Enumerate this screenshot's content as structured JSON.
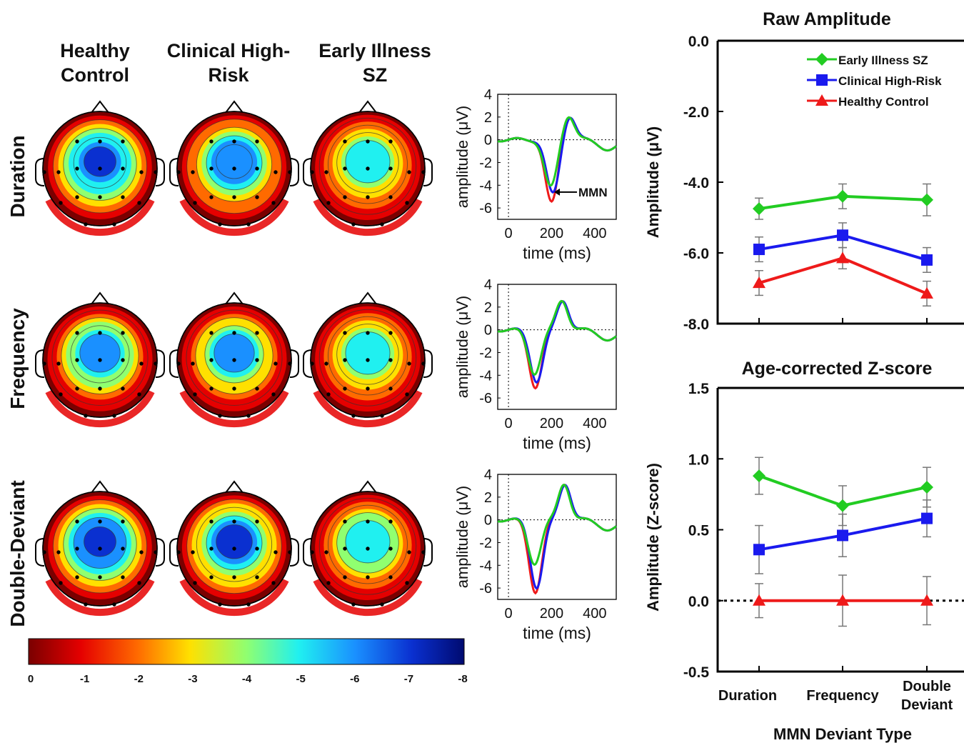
{
  "colors": {
    "early": "#22cc22",
    "chr": "#1a1aee",
    "hc": "#ee1a1a"
  },
  "groups": {
    "col_labels": [
      [
        "Healthy",
        "Control"
      ],
      [
        "Clinical High-",
        "Risk"
      ],
      [
        "Early Illness",
        "SZ"
      ]
    ],
    "row_labels": [
      "Duration",
      "Frequency",
      "Double-Deviant"
    ]
  },
  "topomaps": [
    [
      {
        "peak": -7.3,
        "spread": 1.0
      },
      {
        "peak": -6.4,
        "spread": 0.95
      },
      {
        "peak": -4.6,
        "spread": 0.85
      }
    ],
    [
      {
        "peak": -5.9,
        "spread": 0.9
      },
      {
        "peak": -5.5,
        "spread": 0.9
      },
      {
        "peak": -4.6,
        "spread": 0.85
      }
    ],
    [
      {
        "peak": -7.4,
        "spread": 1.0
      },
      {
        "peak": -6.9,
        "spread": 0.95
      },
      {
        "peak": -4.8,
        "spread": 0.85
      }
    ]
  ],
  "colorbar": {
    "ticks": [
      "0",
      "-1",
      "-2",
      "-3",
      "-4",
      "-5",
      "-6",
      "-7",
      "-8"
    ],
    "min": 0,
    "max": -8
  },
  "erp": {
    "ylabel": "amplitude (μV)",
    "xlabel": "time (ms)",
    "yticks": [
      "4",
      "2",
      "0",
      "-2",
      "-4",
      "-6"
    ],
    "xticks": [
      "0",
      "200",
      "400"
    ],
    "annotation": "MMN",
    "panels": [
      {
        "name": "Duration",
        "early_min": -4.2,
        "chr_min": -4.8,
        "hc_min": -5.6,
        "tmin": 200,
        "peak": 2.2,
        "tpeak": 280
      },
      {
        "name": "Frequency",
        "early_min": -3.8,
        "chr_min": -4.5,
        "hc_min": -5.0,
        "tmin": 125,
        "peak": 2.6,
        "tpeak": 250
      },
      {
        "name": "Double-Deviant",
        "early_min": -3.8,
        "chr_min": -5.9,
        "hc_min": -6.3,
        "tmin": 125,
        "peak": 3.2,
        "tpeak": 260
      }
    ]
  },
  "chart_data": [
    {
      "type": "line",
      "title": "Raw Amplitude",
      "ylabel": "Amplitude (μV)",
      "xlabel": "",
      "categories": [
        "Duration",
        "Frequency",
        "Double Deviant"
      ],
      "ylim": [
        -8.0,
        0.0
      ],
      "yticks": [
        "0.0",
        "-2.0",
        "-4.0",
        "-6.0",
        "-8.0"
      ],
      "legend_position": "top-right",
      "series": [
        {
          "name": "Early Illness SZ",
          "values": [
            -4.75,
            -4.4,
            -4.5
          ],
          "err": [
            0.3,
            0.35,
            0.45
          ],
          "marker": "diamond"
        },
        {
          "name": "Clinical High-Risk",
          "values": [
            -5.9,
            -5.5,
            -6.2
          ],
          "err": [
            0.35,
            0.35,
            0.35
          ],
          "marker": "square"
        },
        {
          "name": "Healthy Control",
          "values": [
            -6.85,
            -6.15,
            -7.15
          ],
          "err": [
            0.35,
            0.3,
            0.35
          ],
          "marker": "triangle"
        }
      ]
    },
    {
      "type": "line",
      "title": "Age-corrected  Z-score",
      "ylabel": "Amplitude (Z-score)",
      "xlabel": "MMN Deviant Type",
      "categories": [
        "Duration",
        "Frequency",
        [
          "Double",
          "Deviant"
        ]
      ],
      "ylim": [
        -0.5,
        1.5
      ],
      "yticks": [
        "1.5",
        "1.0",
        "0.5",
        "0.0",
        "-0.5"
      ],
      "series": [
        {
          "name": "Early Illness SZ",
          "values": [
            0.88,
            0.67,
            0.8
          ],
          "err": [
            0.13,
            0.14,
            0.14
          ]
        },
        {
          "name": "Clinical High-Risk",
          "values": [
            0.36,
            0.46,
            0.58
          ],
          "err": [
            0.17,
            0.15,
            0.13
          ]
        },
        {
          "name": "Healthy Control",
          "values": [
            0.0,
            0.0,
            0.0
          ],
          "err": [
            0.12,
            0.18,
            0.17
          ]
        }
      ]
    }
  ]
}
